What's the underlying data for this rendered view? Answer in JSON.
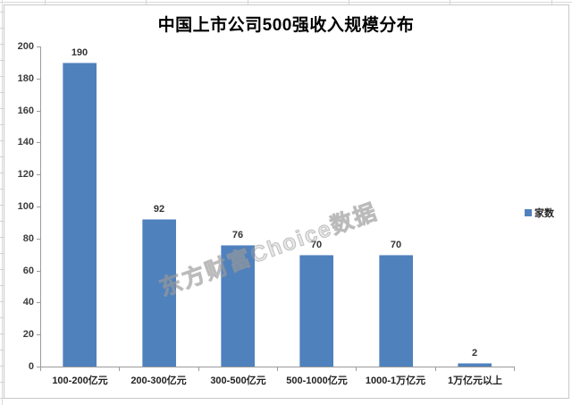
{
  "chart_data": {
    "type": "bar",
    "title": "中国上市公司500强收入规模分布",
    "categories": [
      "100-200亿元",
      "200-300亿元",
      "300-500亿元",
      "500-1000亿元",
      "1000-1万亿元",
      "1万亿元以上"
    ],
    "series": [
      {
        "name": "家数",
        "values": [
          190,
          92,
          76,
          70,
          70,
          2
        ]
      }
    ],
    "ylim": [
      0,
      200
    ],
    "ytick_step": 20,
    "grid": false,
    "legend": {
      "position": "right",
      "entries": [
        "家数"
      ]
    },
    "colors": {
      "bar_fill": "#4f81bd",
      "axis": "#9b9b9b",
      "label": "#333333",
      "frame_border": "#c9c9c9"
    }
  },
  "watermark": {
    "text": "东方财富Choice数据"
  }
}
